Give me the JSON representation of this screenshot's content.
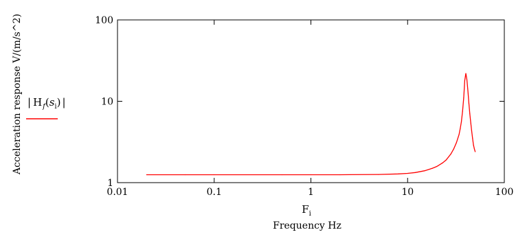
{
  "chart_data": {
    "type": "line",
    "x_scale": "log",
    "y_scale": "log",
    "xlim": [
      0.01,
      100
    ],
    "ylim": [
      1,
      100
    ],
    "x_ticks": [
      "0.01",
      "0.1",
      "1",
      "10",
      "100"
    ],
    "y_ticks": [
      "1",
      "10",
      "100"
    ],
    "xlabel_var": "F",
    "xlabel_sub": "i",
    "xlabel": "Frequency Hz",
    "ylabel": "Acceleration response  V/(m/s^2)",
    "grid": false,
    "legend_position": "left",
    "series": [
      {
        "name_func": "H",
        "name_sub": "f",
        "name_arg": "s",
        "name_arg_sub": "i",
        "color": "#ff0000",
        "x": [
          0.02,
          0.05,
          0.1,
          0.5,
          1,
          2,
          5,
          8,
          10,
          12,
          15,
          18,
          20,
          23,
          25,
          28,
          30,
          32,
          34,
          35,
          36,
          37,
          38,
          39,
          40,
          41,
          42,
          43,
          44,
          45,
          46,
          47,
          48,
          49,
          50
        ],
        "y": [
          1.25,
          1.25,
          1.25,
          1.25,
          1.25,
          1.25,
          1.26,
          1.28,
          1.3,
          1.33,
          1.4,
          1.5,
          1.58,
          1.75,
          1.9,
          2.25,
          2.6,
          3.1,
          3.9,
          4.6,
          5.6,
          7.5,
          11,
          18,
          22,
          18.5,
          13.5,
          9.5,
          7,
          5.4,
          4.3,
          3.5,
          2.9,
          2.6,
          2.4
        ]
      }
    ]
  }
}
